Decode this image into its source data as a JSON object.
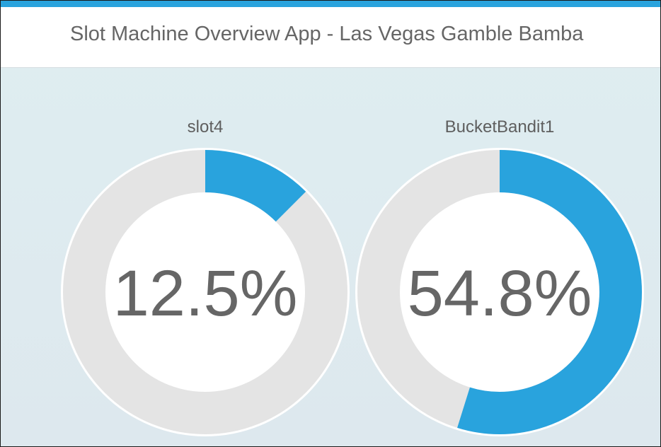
{
  "app": {
    "title": "Slot Machine Overview App - Las Vegas Gamble Bamba"
  },
  "colors": {
    "accent": "#29a3dd",
    "track": "#e4e4e4",
    "text": "#666666"
  },
  "gauges": [
    {
      "name": "slot4",
      "value_label": "12.5%",
      "fraction": 0.125
    },
    {
      "name": "BucketBandit1",
      "value_label": "54.8%",
      "fraction": 0.548
    }
  ]
}
